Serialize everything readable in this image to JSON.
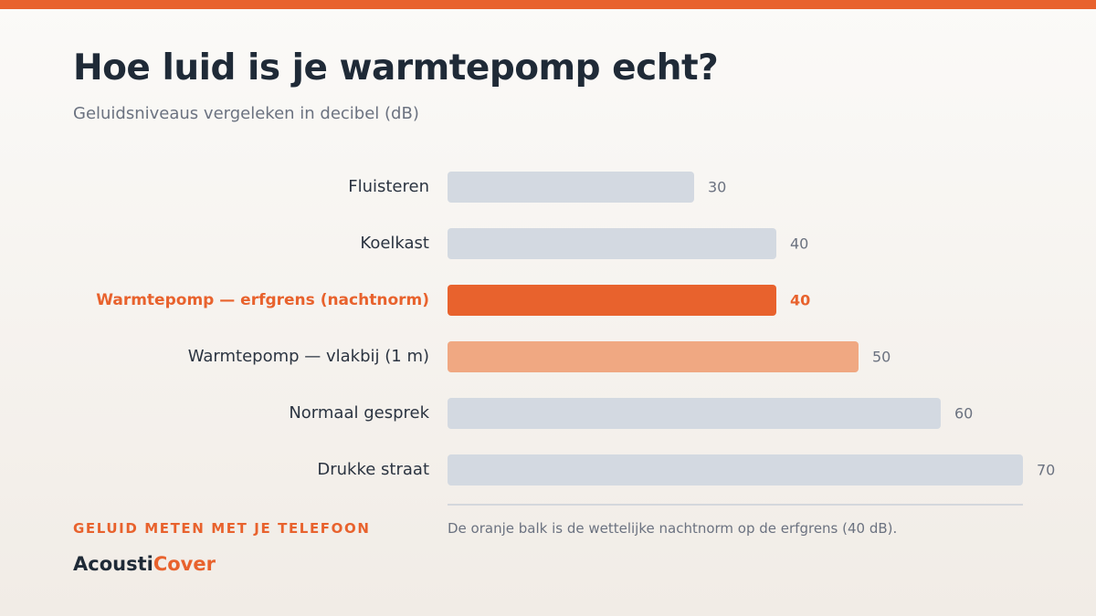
{
  "header": {
    "title": "Hoe luid is je warmtepomp echt?",
    "subtitle": "Geluidsniveaus vergeleken in decibel (dB)"
  },
  "footer": {
    "tagline": "GELUID METEN MET JE TELEFOON",
    "brand_part1": "Acousti",
    "brand_part2": "Cover",
    "note": "De oranje balk is de wettelijke nachtnorm op de erfgrens (40 dB)."
  },
  "colors": {
    "accent": "#e8622d",
    "accent_light": "#f0a882",
    "neutral_bar": "#d3d9e1",
    "text_dark": "#2b3441",
    "text_muted": "#6b7280"
  },
  "chart_data": {
    "type": "bar",
    "orientation": "horizontal",
    "title": "Hoe luid is je warmtepomp echt?",
    "subtitle": "Geluidsniveaus vergeleken in decibel (dB)",
    "categories": [
      "Fluisteren",
      "Koelkast",
      "Warmtepomp — erfgrens (nachtnorm)",
      "Warmtepomp — vlakbij (1 m)",
      "Normaal gesprek",
      "Drukke straat"
    ],
    "values": [
      30,
      40,
      40,
      50,
      60,
      70
    ],
    "value_labels": [
      "30",
      "40",
      "40",
      "50",
      "60",
      "70"
    ],
    "highlight": [
      "neutral",
      "neutral",
      "accent",
      "accent-light",
      "neutral",
      "neutral"
    ],
    "xlim": [
      0,
      70
    ],
    "xlabel": "",
    "ylabel": "",
    "grid": false,
    "legend": "none"
  }
}
